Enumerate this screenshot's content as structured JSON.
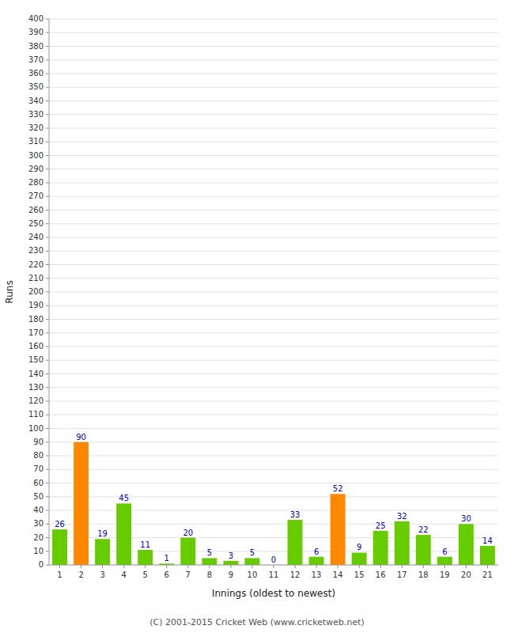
{
  "chart_data": {
    "type": "bar",
    "categories": [
      "1",
      "2",
      "3",
      "4",
      "5",
      "6",
      "7",
      "8",
      "9",
      "10",
      "11",
      "12",
      "13",
      "14",
      "15",
      "16",
      "17",
      "18",
      "19",
      "20",
      "21"
    ],
    "values": [
      26,
      90,
      19,
      45,
      11,
      1,
      20,
      5,
      3,
      5,
      0,
      33,
      6,
      52,
      9,
      25,
      32,
      22,
      6,
      30,
      14
    ],
    "colors": [
      "#66cc00",
      "#ff8800",
      "#66cc00",
      "#66cc00",
      "#66cc00",
      "#66cc00",
      "#66cc00",
      "#66cc00",
      "#66cc00",
      "#66cc00",
      "#66cc00",
      "#66cc00",
      "#66cc00",
      "#ff8800",
      "#66cc00",
      "#66cc00",
      "#66cc00",
      "#66cc00",
      "#66cc00",
      "#66cc00",
      "#66cc00"
    ],
    "xlabel": "Innings (oldest to newest)",
    "ylabel": "Runs",
    "ylim": [
      0,
      400
    ],
    "yticks": [
      0,
      10,
      20,
      30,
      40,
      50,
      60,
      70,
      80,
      90,
      100,
      110,
      120,
      130,
      140,
      150,
      160,
      170,
      180,
      190,
      200,
      210,
      220,
      230,
      240,
      250,
      260,
      270,
      280,
      290,
      300,
      310,
      320,
      330,
      340,
      350,
      360,
      370,
      380,
      390,
      400
    ],
    "grid": true,
    "data_labels": true,
    "annotations": [
      "(C) 2001-2015 Cricket Web (www.cricketweb.net)"
    ]
  }
}
